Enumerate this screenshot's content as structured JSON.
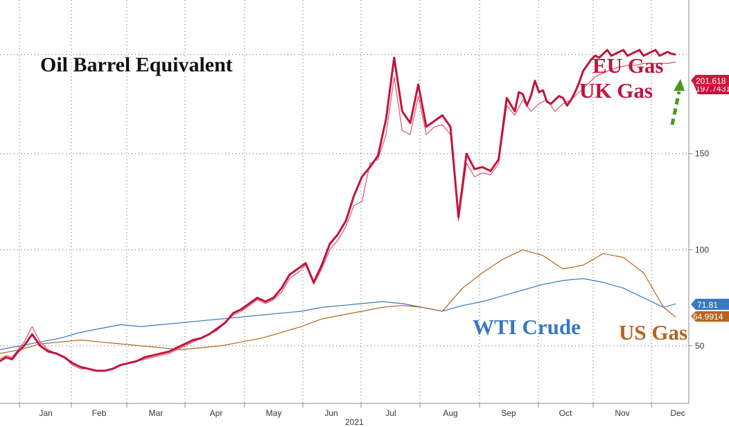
{
  "chart_data": {
    "type": "line",
    "title": "Oil Barrel Equivalent",
    "year_label": "2021",
    "x_ticks": [
      "Jan",
      "Feb",
      "Mar",
      "Apr",
      "May",
      "Jun",
      "Jul",
      "Aug",
      "Sep",
      "Oct",
      "Nov",
      "Dec"
    ],
    "y_ticks": [
      50,
      100,
      150
    ],
    "ylim": [
      20,
      230
    ],
    "grid": true,
    "y_axis_position": "right",
    "series_labels": {
      "eu": "EU Gas",
      "uk": "UK Gas",
      "wti": "WTI Crude",
      "us": "US Gas"
    },
    "last_value_tags": {
      "eu": "201.618",
      "uk": "197.7431",
      "wti": "71.81",
      "us": "64.9914"
    },
    "series": [
      {
        "key": "eu",
        "color": "#c0143c",
        "x": [
          0,
          3,
          6,
          9,
          12,
          16,
          20,
          24,
          28,
          32,
          36,
          40,
          44,
          48,
          52,
          56,
          60,
          64,
          68,
          72,
          76,
          80,
          84,
          88,
          92,
          96,
          100,
          104,
          108,
          112,
          116,
          120,
          124,
          128,
          132,
          136,
          140,
          144,
          148,
          152,
          156,
          160,
          164,
          168,
          172,
          176,
          180,
          184,
          188,
          192,
          196,
          200,
          204,
          208,
          212,
          216,
          220,
          224,
          228,
          232,
          236,
          240,
          244,
          248,
          252,
          256,
          258,
          260,
          262,
          264,
          266,
          268,
          270,
          272,
          274,
          276,
          278,
          280,
          282,
          284,
          286,
          288,
          290,
          292,
          294,
          296,
          298,
          300,
          302,
          304,
          306,
          308,
          310,
          312,
          314,
          316,
          318,
          320,
          322,
          324,
          326,
          328,
          330,
          332,
          334,
          336
        ],
        "values": [
          42,
          44,
          43,
          47,
          50,
          56,
          50,
          47,
          46,
          44,
          41,
          39,
          38,
          37,
          37,
          38,
          40,
          41,
          42,
          44,
          45,
          46,
          47,
          49,
          51,
          53,
          54,
          56,
          59,
          62,
          67,
          69,
          72,
          75,
          73,
          75,
          80,
          87,
          90,
          93,
          83,
          92,
          103,
          108,
          115,
          128,
          138,
          143,
          149,
          168,
          200,
          172,
          166,
          186,
          164,
          167,
          170,
          164,
          117,
          150,
          142,
          143,
          141,
          147,
          179,
          172,
          182,
          181,
          175,
          180,
          188,
          182,
          183,
          177,
          176,
          178,
          180,
          179,
          175,
          178,
          182,
          187,
          193,
          196,
          199,
          201,
          200,
          202,
          204,
          201,
          202,
          203,
          204,
          201,
          202,
          203,
          204,
          201,
          202,
          203,
          204,
          201,
          202,
          203,
          202,
          201.618
        ]
      },
      {
        "key": "uk",
        "color": "#e0506a",
        "x": [
          0,
          3,
          6,
          9,
          12,
          16,
          20,
          24,
          28,
          32,
          36,
          40,
          44,
          48,
          52,
          56,
          60,
          64,
          68,
          72,
          76,
          80,
          84,
          88,
          92,
          96,
          100,
          104,
          108,
          112,
          116,
          120,
          124,
          128,
          132,
          136,
          140,
          144,
          148,
          152,
          156,
          160,
          164,
          168,
          172,
          176,
          180,
          184,
          188,
          192,
          196,
          200,
          204,
          208,
          212,
          216,
          220,
          224,
          228,
          232,
          236,
          240,
          244,
          248,
          252,
          256,
          260,
          264,
          268,
          272,
          276,
          280,
          284,
          288,
          292,
          296,
          300,
          304,
          308,
          312,
          316,
          320,
          324,
          328,
          332,
          336
        ],
        "values": [
          43,
          45,
          44,
          48,
          52,
          60,
          52,
          48,
          46,
          44,
          40,
          38,
          38,
          37,
          37,
          38,
          40,
          41,
          42,
          43,
          44,
          45,
          46,
          48,
          50,
          52,
          54,
          56,
          58,
          62,
          66,
          68,
          71,
          74,
          72,
          74,
          78,
          85,
          88,
          92,
          82,
          90,
          100,
          105,
          112,
          123,
          125,
          145,
          147,
          160,
          190,
          162,
          160,
          180,
          160,
          164,
          165,
          160,
          115,
          145,
          138,
          140,
          139,
          145,
          175,
          170,
          178,
          172,
          176,
          178,
          172,
          176,
          178,
          182,
          186,
          190,
          192,
          194,
          195,
          196,
          196,
          197,
          197,
          197,
          197,
          197.7431
        ]
      },
      {
        "key": "wti",
        "color": "#3a78bf",
        "x": [
          0,
          10,
          20,
          30,
          40,
          50,
          60,
          70,
          80,
          90,
          100,
          110,
          120,
          130,
          140,
          150,
          160,
          170,
          180,
          190,
          200,
          210,
          220,
          230,
          240,
          250,
          260,
          270,
          280,
          290,
          300,
          310,
          320,
          330,
          336
        ],
        "values": [
          48,
          50,
          52,
          54,
          57,
          59,
          61,
          60,
          61,
          62,
          63,
          64,
          65,
          66,
          67,
          68,
          70,
          71,
          72,
          73,
          72,
          70,
          68,
          71,
          73,
          76,
          79,
          82,
          84,
          85,
          83,
          80,
          75,
          70,
          71.81
        ]
      },
      {
        "key": "us",
        "color": "#b5651d",
        "x": [
          0,
          10,
          20,
          30,
          40,
          50,
          60,
          70,
          80,
          90,
          100,
          110,
          120,
          130,
          140,
          150,
          160,
          170,
          180,
          190,
          200,
          210,
          220,
          230,
          240,
          250,
          260,
          270,
          280,
          290,
          300,
          310,
          320,
          330,
          336
        ],
        "values": [
          46,
          48,
          51,
          52,
          53,
          52,
          51,
          50,
          49,
          48,
          49,
          50,
          52,
          54,
          57,
          60,
          64,
          66,
          68,
          70,
          71,
          70,
          68,
          80,
          88,
          95,
          100,
          97,
          90,
          92,
          98,
          96,
          88,
          70,
          64.9914
        ]
      }
    ]
  }
}
